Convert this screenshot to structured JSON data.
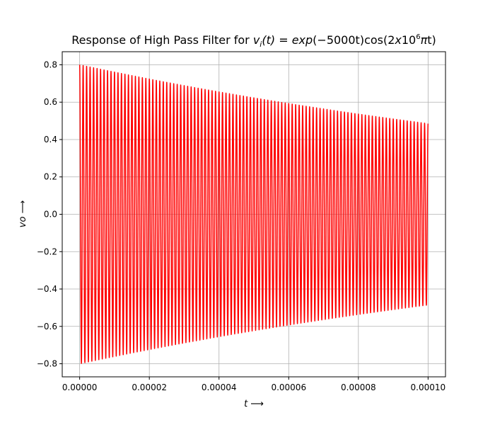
{
  "chart_data": {
    "type": "line",
    "title": "Response of High Pass Filter for v_i(t) = exp(−5000t)cos(2x10^6πt)",
    "title_parts": {
      "prefix": "Response of High Pass Filter for ",
      "v": "v",
      "i": "i",
      "t_arg": "(t)",
      "eq": " = ",
      "exp": "exp",
      "exp_arg": "(−5000t)",
      "cos": "cos(2",
      "x": "x",
      "ten": "10",
      "six": "6",
      "pi": "π",
      "tail": "t)"
    },
    "xlabel": "t ⟶",
    "ylabel": "vo ⟶",
    "xlim": [
      -5e-06,
      0.000105
    ],
    "ylim": [
      -0.87,
      0.87
    ],
    "x_ticks": [
      0,
      2e-05,
      4e-05,
      6e-05,
      8e-05,
      0.0001
    ],
    "x_tick_labels": [
      "0.00000",
      "0.00002",
      "0.00004",
      "0.00006",
      "0.00008",
      "0.00010"
    ],
    "y_ticks": [
      -0.8,
      -0.6,
      -0.4,
      -0.2,
      0.0,
      0.2,
      0.4,
      0.6,
      0.8
    ],
    "y_tick_labels": [
      "−0.8",
      "−0.6",
      "−0.4",
      "−0.2",
      "0.0",
      "0.2",
      "0.4",
      "0.6",
      "0.8"
    ],
    "grid": true,
    "series": [
      {
        "color": "#ff0000",
        "function": "0.8*exp(-5000*t)*cos(2e6*pi*t)",
        "amplitude": 0.8,
        "decay_rate": 5000,
        "frequency_hz": 1000000,
        "t_start": 0,
        "t_end": 0.0001
      }
    ]
  }
}
